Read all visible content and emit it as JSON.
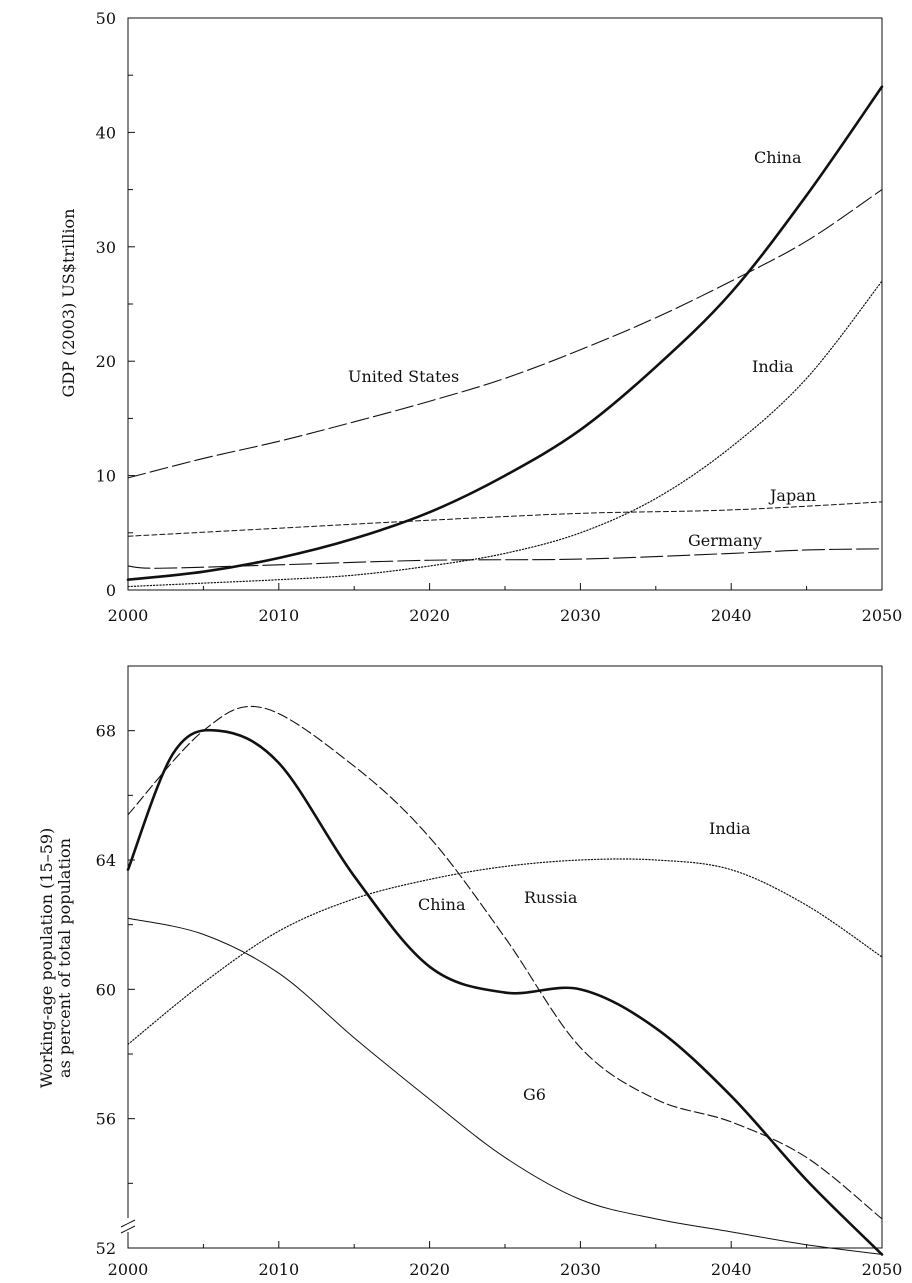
{
  "chart_data": [
    {
      "type": "line",
      "title": "",
      "xlabel": "",
      "ylabel": "GDP (2003) US$trillion",
      "xlim": [
        2000,
        2050
      ],
      "ylim": [
        0,
        50
      ],
      "xticks": [
        2000,
        2010,
        2020,
        2030,
        2040,
        2050
      ],
      "yticks": [
        0,
        10,
        20,
        30,
        40,
        50
      ],
      "grid": false,
      "series": [
        {
          "name": "China",
          "style": "thick-solid",
          "x": [
            2000,
            2005,
            2010,
            2015,
            2020,
            2025,
            2030,
            2035,
            2040,
            2045,
            2050
          ],
          "y": [
            0.9,
            1.6,
            2.8,
            4.5,
            6.8,
            10.0,
            14.0,
            19.5,
            26.0,
            34.5,
            44.0
          ]
        },
        {
          "name": "United States",
          "style": "long-dash",
          "x": [
            2000,
            2005,
            2010,
            2015,
            2020,
            2025,
            2030,
            2035,
            2040,
            2045,
            2050
          ],
          "y": [
            9.8,
            11.5,
            13.0,
            14.7,
            16.5,
            18.5,
            21.0,
            23.8,
            27.0,
            30.5,
            35.0
          ]
        },
        {
          "name": "India",
          "style": "dotted",
          "x": [
            2000,
            2005,
            2010,
            2015,
            2020,
            2025,
            2030,
            2035,
            2040,
            2045,
            2050
          ],
          "y": [
            0.3,
            0.6,
            0.9,
            1.3,
            2.1,
            3.2,
            5.0,
            8.0,
            12.5,
            18.5,
            27.0
          ]
        },
        {
          "name": "Japan",
          "style": "short-dash",
          "x": [
            2000,
            2010,
            2020,
            2030,
            2040,
            2050
          ],
          "y": [
            4.7,
            5.4,
            6.1,
            6.7,
            7.0,
            7.7
          ]
        },
        {
          "name": "Germany",
          "style": "dash-long",
          "x": [
            2000,
            2002,
            2010,
            2020,
            2030,
            2040,
            2045,
            2050
          ],
          "y": [
            2.1,
            1.9,
            2.2,
            2.6,
            2.7,
            3.2,
            3.5,
            3.6
          ]
        }
      ]
    },
    {
      "type": "line",
      "title": "",
      "xlabel": "",
      "ylabel": "Working-age population (15–59) as percent of total population",
      "ylabel_lines": [
        "Working-age population (15–59)",
        "as percent of total population"
      ],
      "xlim": [
        2000,
        2050
      ],
      "ylim": [
        52,
        70
      ],
      "xticks": [
        2000,
        2010,
        2020,
        2030,
        2040,
        2050
      ],
      "yticks": [
        52,
        56,
        60,
        64,
        68
      ],
      "y_axis_break": true,
      "grid": false,
      "series": [
        {
          "name": "China",
          "style": "thick-solid",
          "x": [
            2000,
            2003,
            2006,
            2010,
            2015,
            2020,
            2025,
            2030,
            2035,
            2040,
            2045,
            2050
          ],
          "y": [
            63.7,
            67.3,
            68.0,
            67.0,
            63.5,
            60.7,
            59.9,
            60.0,
            58.8,
            56.7,
            54.1,
            51.8
          ]
        },
        {
          "name": "Russia",
          "style": "dash",
          "x": [
            2000,
            2005,
            2009,
            2015,
            2020,
            2025,
            2030,
            2035,
            2040,
            2045,
            2050
          ],
          "y": [
            65.4,
            68.0,
            68.7,
            66.9,
            64.7,
            61.6,
            58.2,
            56.6,
            55.9,
            54.8,
            52.9
          ]
        },
        {
          "name": "India",
          "style": "dotted",
          "x": [
            2000,
            2005,
            2010,
            2015,
            2020,
            2025,
            2030,
            2035,
            2040,
            2045,
            2050
          ],
          "y": [
            58.3,
            60.2,
            61.8,
            62.8,
            63.4,
            63.8,
            64.0,
            64.0,
            63.7,
            62.6,
            61.0
          ]
        },
        {
          "name": "G6",
          "style": "thin-solid",
          "x": [
            2000,
            2005,
            2010,
            2015,
            2020,
            2025,
            2030,
            2035,
            2040,
            2045,
            2050
          ],
          "y": [
            62.2,
            61.7,
            60.5,
            58.5,
            56.6,
            54.8,
            53.5,
            52.9,
            52.5,
            52.1,
            51.8
          ]
        }
      ]
    }
  ],
  "annotations_top": {
    "china": "China",
    "united_states": "United States",
    "india": "India",
    "japan": "Japan",
    "germany": "Germany"
  },
  "annotations_bottom": {
    "china": "China",
    "russia": "Russia",
    "india": "India",
    "g6": "G6"
  }
}
